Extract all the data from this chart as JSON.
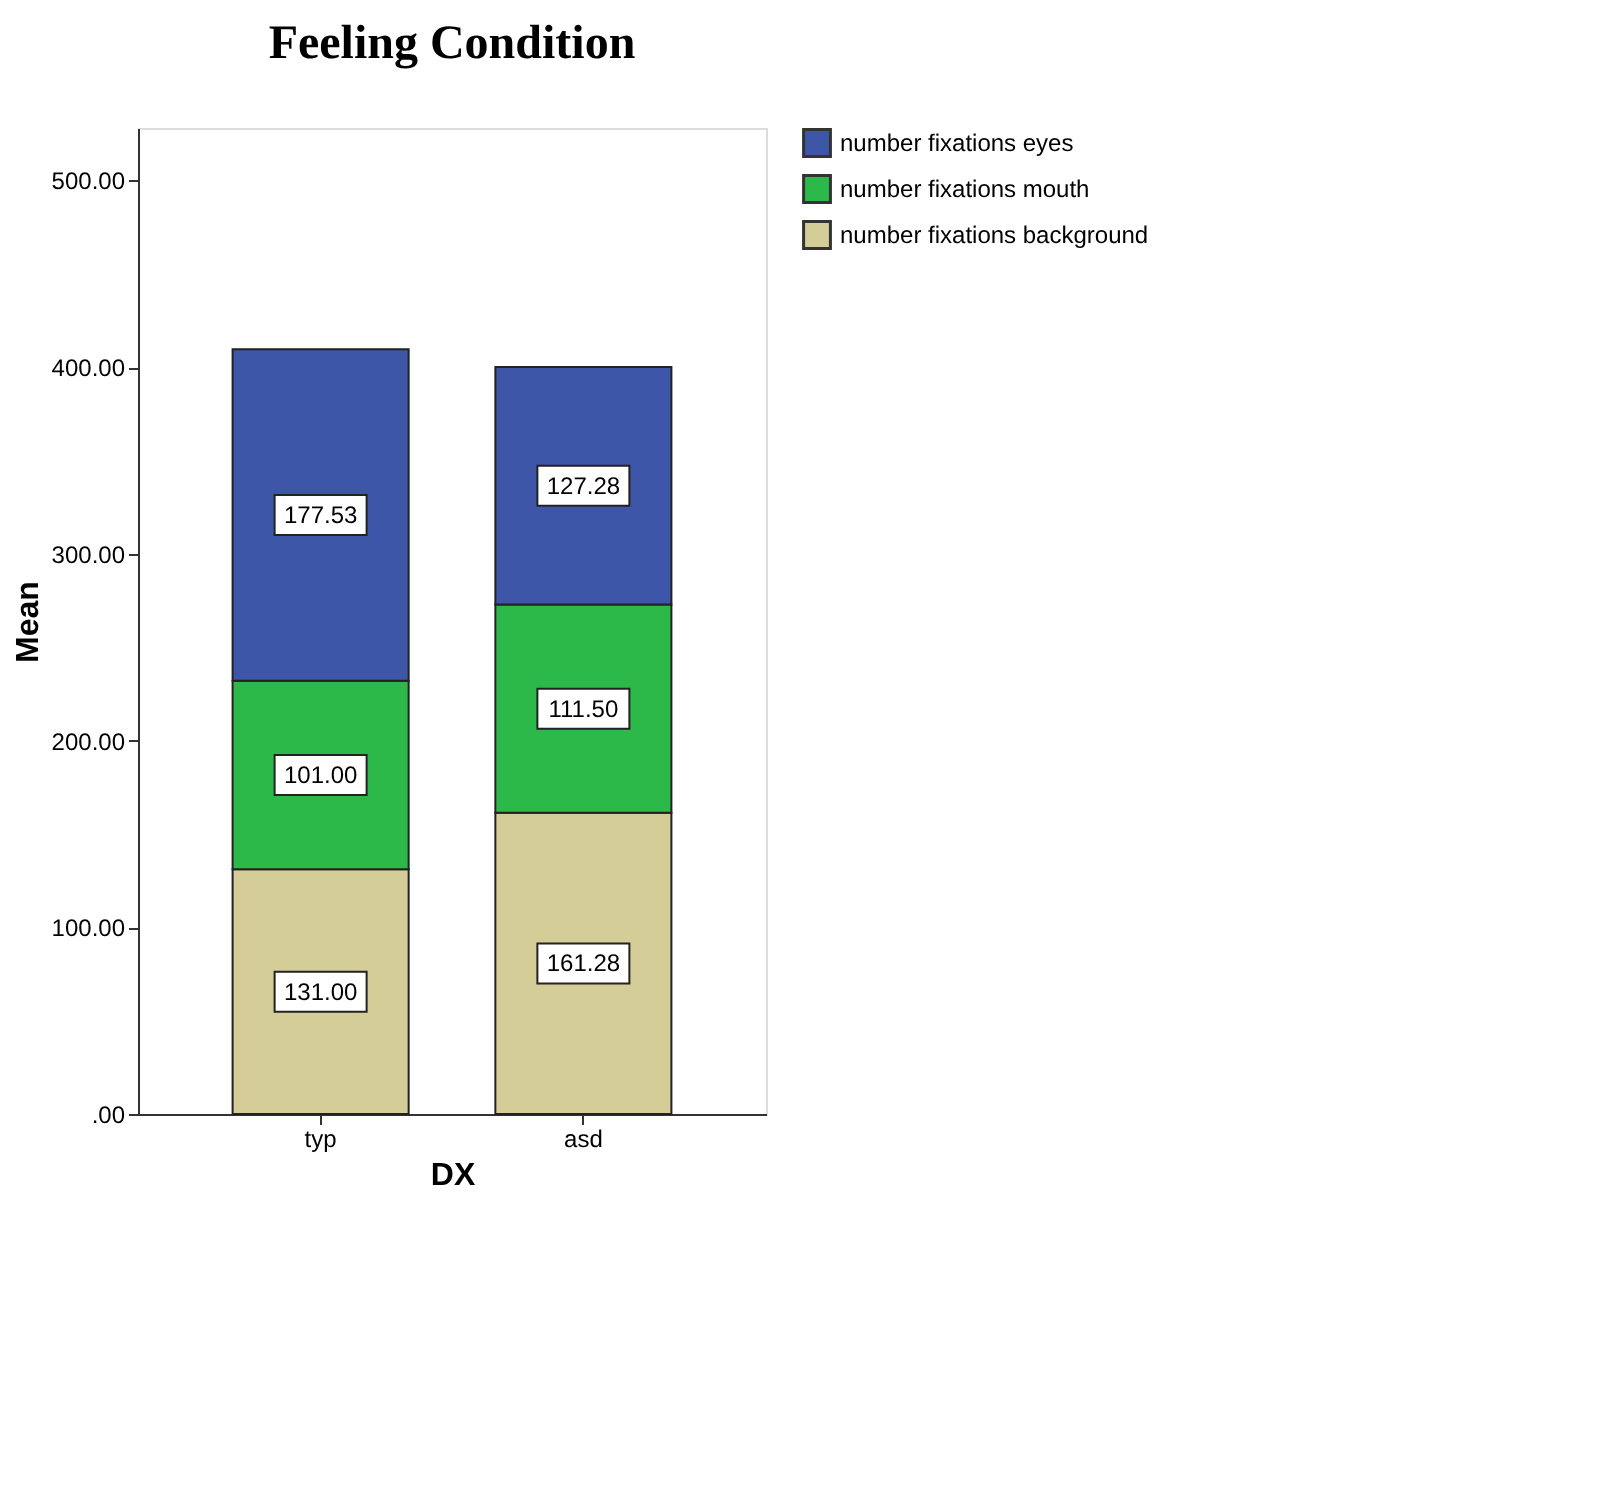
{
  "chart_data": {
    "type": "bar",
    "title": "Feeling Condition",
    "xlabel": "DX",
    "ylabel": "Mean",
    "categories": [
      "typ",
      "asd"
    ],
    "stacked": true,
    "series": [
      {
        "name": "number fixations background",
        "color": "#d4cd98",
        "values": [
          131.0,
          161.28
        ],
        "value_labels": [
          "131.00",
          "161.28"
        ]
      },
      {
        "name": "number fixations mouth",
        "color": "#2db84a",
        "values": [
          101.0,
          111.5
        ],
        "value_labels": [
          "101.00",
          "111.50"
        ]
      },
      {
        "name": "number fixations eyes",
        "color": "#3d56a8",
        "values": [
          177.53,
          127.28
        ],
        "value_labels": [
          "177.53",
          "127.28"
        ]
      }
    ],
    "ylim": [
      0,
      528
    ],
    "yticks": [
      {
        "value": 0,
        "label": ".00"
      },
      {
        "value": 100,
        "label": "100.00"
      },
      {
        "value": 200,
        "label": "200.00"
      },
      {
        "value": 300,
        "label": "300.00"
      },
      {
        "value": 400,
        "label": "400.00"
      },
      {
        "value": 500,
        "label": "500.00"
      }
    ],
    "grid": false,
    "legend": "top right"
  }
}
